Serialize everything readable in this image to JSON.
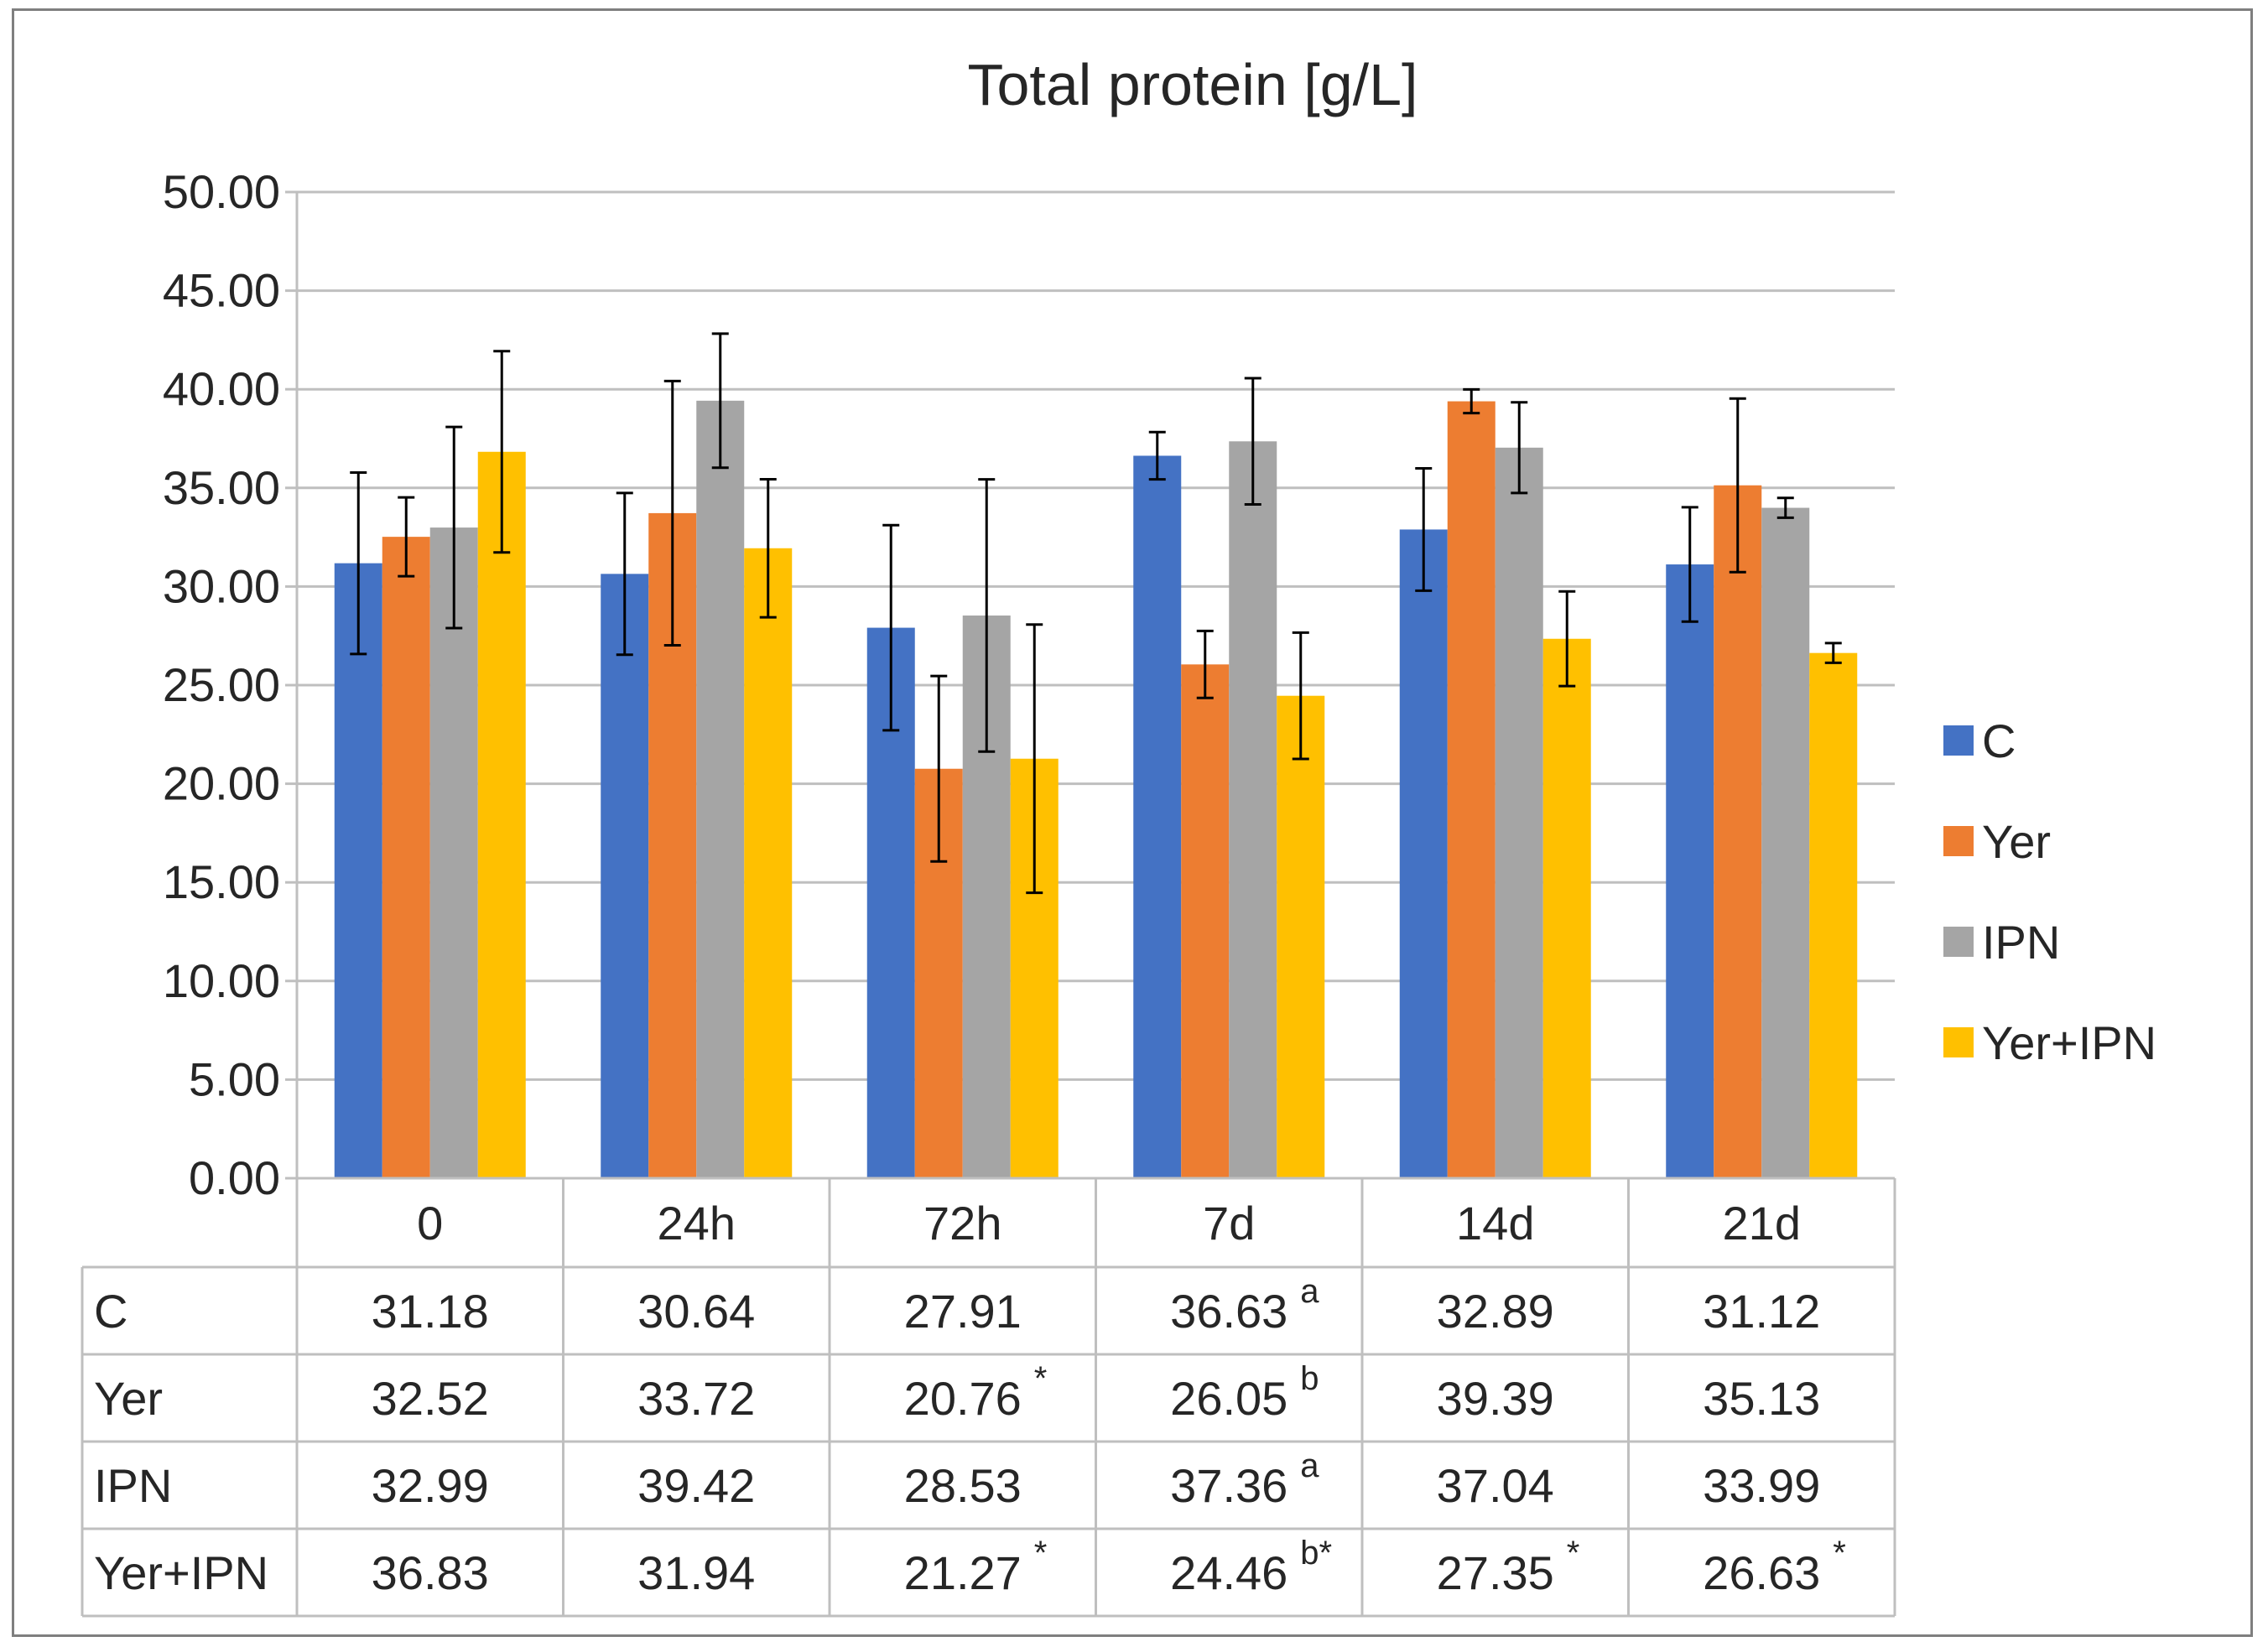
{
  "chart_data": {
    "type": "bar",
    "title": "Total protein [g/L]",
    "xlabel": "",
    "ylabel": "",
    "ylim": [
      0,
      50
    ],
    "y_ticks": [
      "0.00",
      "5.00",
      "10.00",
      "15.00",
      "20.00",
      "25.00",
      "30.00",
      "35.00",
      "40.00",
      "45.00",
      "50.00"
    ],
    "y_tick_values": [
      0,
      5,
      10,
      15,
      20,
      25,
      30,
      35,
      40,
      45,
      50
    ],
    "grid": true,
    "legend_position": "right",
    "categories": [
      "0",
      "24h",
      "72h",
      "7d",
      "14d",
      "21d"
    ],
    "series": [
      {
        "name": "C",
        "color": "#4472c4",
        "values": [
          31.18,
          30.64,
          27.91,
          36.63,
          32.89,
          31.12
        ],
        "error": [
          4.6,
          4.1,
          5.2,
          1.2,
          3.1,
          2.9
        ],
        "labels": [
          "31.18",
          "30.64",
          "27.91",
          "36.63",
          "32.89",
          "31.12"
        ],
        "notes": [
          "",
          "",
          "",
          "a",
          "",
          ""
        ]
      },
      {
        "name": "Yer",
        "color": "#ed7d31",
        "values": [
          32.52,
          33.72,
          20.76,
          26.05,
          39.39,
          35.13
        ],
        "error": [
          2.0,
          6.7,
          4.7,
          1.7,
          0.6,
          4.4
        ],
        "labels": [
          "32.52",
          "33.72",
          "20.76",
          "26.05",
          "39.39",
          "35.13"
        ],
        "notes": [
          "",
          "",
          "*",
          "b",
          "",
          ""
        ]
      },
      {
        "name": "IPN",
        "color": "#a5a5a5",
        "values": [
          32.99,
          39.42,
          28.53,
          37.36,
          37.04,
          33.99
        ],
        "error": [
          5.1,
          3.4,
          6.9,
          3.2,
          2.3,
          0.5
        ],
        "labels": [
          "32.99",
          "39.42",
          "28.53",
          "37.36",
          "37.04",
          "33.99"
        ],
        "notes": [
          "",
          "",
          "",
          "a",
          "",
          ""
        ]
      },
      {
        "name": "Yer+IPN",
        "color": "#ffc000",
        "values": [
          36.83,
          31.94,
          21.27,
          24.46,
          27.35,
          26.63
        ],
        "error": [
          5.1,
          3.5,
          6.8,
          3.2,
          2.4,
          0.5
        ],
        "labels": [
          "36.83",
          "31.94",
          "21.27",
          "24.46",
          "27.35",
          "26.63"
        ],
        "notes": [
          "",
          "",
          "*",
          "b*",
          "*",
          "*"
        ]
      }
    ]
  }
}
